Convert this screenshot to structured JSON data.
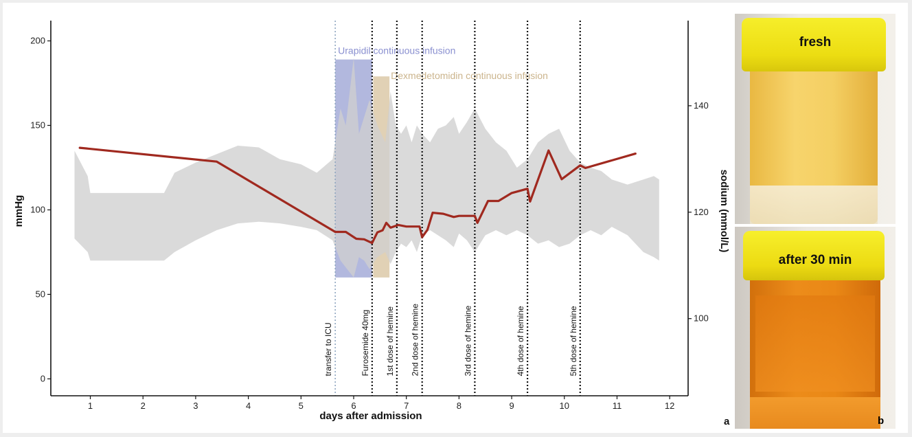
{
  "chart_data": {
    "type": "line",
    "xlabel": "days after admission",
    "ylabel_left": "mmHg",
    "ylabel_right": "sodium (mmol/L)",
    "x_ticks": [
      1,
      2,
      3,
      4,
      5,
      6,
      7,
      8,
      9,
      10,
      11,
      12
    ],
    "y_left_ticks": [
      0,
      50,
      100,
      150,
      200
    ],
    "y_right_ticks": [
      100,
      120,
      140
    ],
    "xlim": [
      0.25,
      12.35
    ],
    "ylim_left": [
      -10,
      212
    ],
    "ylim_right": [
      85.5,
      156
    ],
    "sodium_series": {
      "x": [
        0.8,
        3.4,
        5.65,
        5.85,
        6.05,
        6.2,
        6.35,
        6.45,
        6.55,
        6.62,
        6.7,
        6.85,
        7.0,
        7.25,
        7.3,
        7.4,
        7.5,
        7.7,
        7.9,
        8.0,
        8.3,
        8.35,
        8.55,
        8.75,
        9.0,
        9.3,
        9.35,
        9.7,
        9.95,
        10.3,
        10.4,
        11.35
      ],
      "y": [
        132.1,
        129.5,
        116.3,
        116.3,
        115.0,
        114.9,
        114.2,
        116.2,
        116.6,
        118.0,
        117.1,
        117.6,
        117.3,
        117.3,
        115.3,
        116.7,
        119.9,
        119.7,
        119.1,
        119.3,
        119.3,
        118.0,
        122.1,
        122.1,
        123.6,
        124.4,
        122.0,
        131.6,
        126.2,
        128.8,
        128.3,
        131.0
      ]
    },
    "bp_range": {
      "x": [
        0.7,
        0.95,
        1.0,
        1.5,
        2.0,
        2.4,
        2.6,
        3.0,
        3.4,
        3.8,
        4.2,
        4.6,
        5.0,
        5.3,
        5.6,
        5.75,
        5.85,
        6.0,
        6.1,
        6.2,
        6.3,
        6.45,
        6.6,
        6.7,
        6.8,
        6.9,
        7.0,
        7.1,
        7.2,
        7.3,
        7.45,
        7.6,
        7.75,
        7.9,
        8.0,
        8.15,
        8.3,
        8.5,
        8.7,
        8.9,
        9.1,
        9.3,
        9.5,
        9.7,
        9.9,
        10.1,
        10.3,
        10.5,
        10.7,
        10.9,
        11.2,
        11.5,
        11.7,
        11.8
      ],
      "upper": [
        135,
        120,
        110,
        110,
        110,
        110,
        122,
        128,
        133,
        138,
        137,
        130,
        127,
        122,
        130,
        160,
        150,
        190,
        145,
        155,
        165,
        150,
        140,
        170,
        150,
        145,
        150,
        140,
        150,
        145,
        140,
        148,
        150,
        155,
        145,
        152,
        160,
        148,
        140,
        135,
        125,
        130,
        140,
        145,
        148,
        135,
        128,
        125,
        123,
        118,
        115,
        118,
        120,
        118
      ],
      "lower": [
        83,
        75,
        70,
        70,
        70,
        70,
        75,
        82,
        88,
        92,
        93,
        92,
        90,
        88,
        82,
        70,
        66,
        60,
        72,
        70,
        65,
        72,
        75,
        68,
        75,
        80,
        78,
        82,
        75,
        85,
        88,
        85,
        82,
        78,
        86,
        82,
        75,
        85,
        88,
        85,
        88,
        85,
        80,
        82,
        78,
        80,
        85,
        88,
        85,
        90,
        85,
        75,
        72,
        70
      ]
    },
    "shaded_periods": [
      {
        "label": "Urapidil continuous infusion",
        "x_start": 5.65,
        "x_end": 6.35,
        "y_bottom": 60,
        "y_top": 189,
        "color": "#a5acd8"
      },
      {
        "label": "Dexmedetomidin continuous infusion",
        "x_start": 6.37,
        "x_end": 6.68,
        "y_bottom": 60,
        "y_top": 179,
        "color": "#dcc9a8"
      }
    ],
    "events": [
      {
        "x": 5.65,
        "label": "transfer to ICU",
        "style": "light"
      },
      {
        "x": 6.35,
        "label": "Furosemide 40mg",
        "style": "dark"
      },
      {
        "x": 6.82,
        "label": "1st dose of hemine",
        "style": "dark"
      },
      {
        "x": 7.3,
        "label": "2nd dose of hemine",
        "style": "dark"
      },
      {
        "x": 8.3,
        "label": "3rd dose of hemine",
        "style": "dark"
      },
      {
        "x": 9.3,
        "label": "4th dose of hemine",
        "style": "dark"
      },
      {
        "x": 10.3,
        "label": "5th dose of hemine",
        "style": "dark"
      }
    ],
    "colors": {
      "sodium": "#a0291f",
      "bp": "#d0d0d0",
      "right_axis_label": "#b83224"
    }
  },
  "panels": {
    "a": "a",
    "b": "b",
    "photo_top_label": "fresh",
    "photo_bottom_label": "after 30 min"
  }
}
